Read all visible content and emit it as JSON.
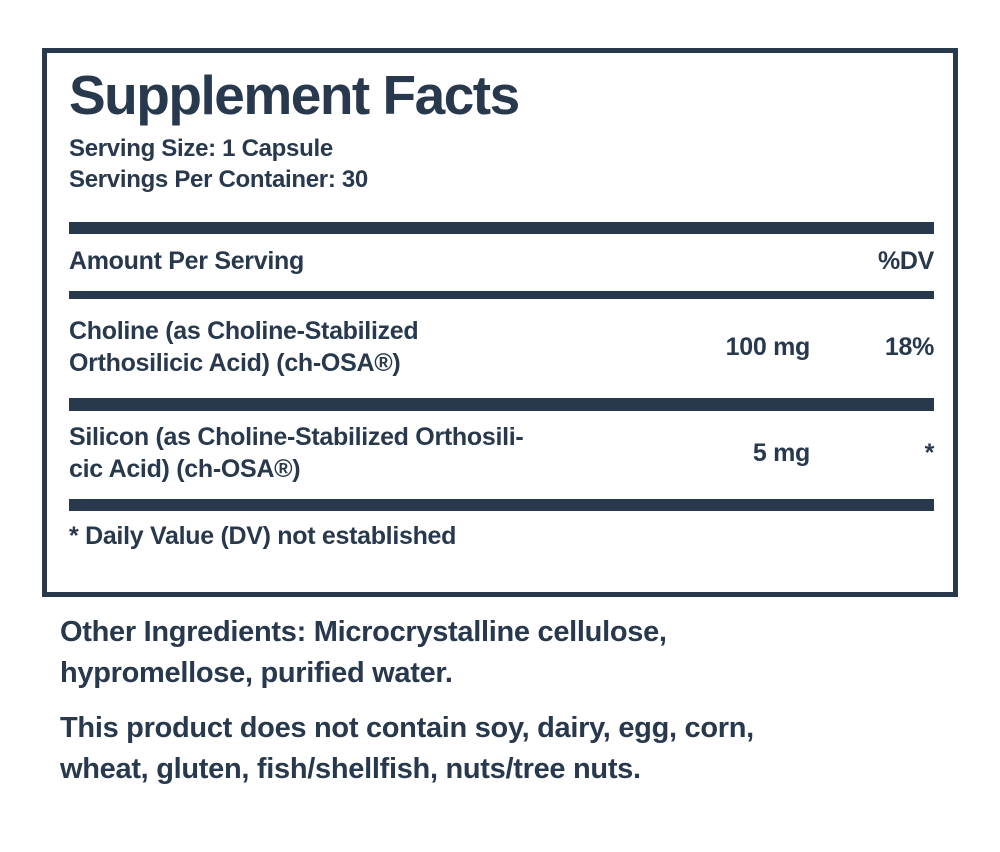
{
  "colors": {
    "ink": "#28394e",
    "background": "#ffffff"
  },
  "panel": {
    "title": "Supplement Facts",
    "serving_size": "Serving Size: 1 Capsule",
    "servings_per_container": "Servings Per Container: 30",
    "header": {
      "amount_label": "Amount Per Serving",
      "dv_label": "%DV"
    },
    "rows": [
      {
        "name_lines": [
          "Choline (as Choline-Stabilized",
          "Orthosilicic Acid) (ch-OSA®)"
        ],
        "amount": "100 mg",
        "dv": "18%"
      },
      {
        "name_lines": [
          "Silicon (as Choline-Stabilized Orthosili-",
          "cic Acid) (ch-OSA®)"
        ],
        "amount": "5 mg",
        "dv": "*"
      }
    ],
    "footnote": "* Daily Value (DV) not established"
  },
  "other_ingredients": {
    "label": "Other Ingredients:",
    "line1_rest": " Microcrystalline cellulose,",
    "line2": "hypromellose, purified water."
  },
  "allergen": {
    "line1": "This product does not contain soy, dairy, egg, corn,",
    "line2": "wheat, gluten, fish/shellfish, nuts/tree nuts."
  }
}
